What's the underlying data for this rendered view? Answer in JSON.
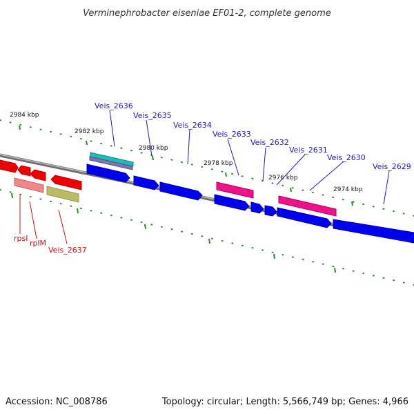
{
  "title": "Verminephrobacter eiseniae EF01-2, complete genome",
  "footer": {
    "accession": "Accession: NC_008786",
    "summary": "Topology: circular; Length: 5,566,749 bp; Genes: 4,966"
  },
  "scale_labels": [
    "2984 kbp",
    "2982 kbp",
    "2980 kbp",
    "2978 kbp",
    "2976 kbp",
    "2974 kbp"
  ],
  "colors": {
    "forward_gene": "#0000ee",
    "reverse_gene": "#ee0000",
    "forward_label": "#1a1acc",
    "reverse_label": "#cc1111",
    "backbone": "#8a8a8a",
    "ticks": "#2a8a2a",
    "magenta": "#ee1188",
    "teal": "#22bbbb",
    "pink": "#ee8888",
    "olive": "#bbbb66"
  },
  "forward_labels": [
    "Veis_2636",
    "Veis_2635",
    "Veis_2634",
    "Veis_2633",
    "Veis_2632",
    "Veis_2631",
    "Veis_2630",
    "Veis_2629"
  ],
  "reverse_labels": [
    "rpsI",
    "rplM",
    "Veis_2637"
  ]
}
